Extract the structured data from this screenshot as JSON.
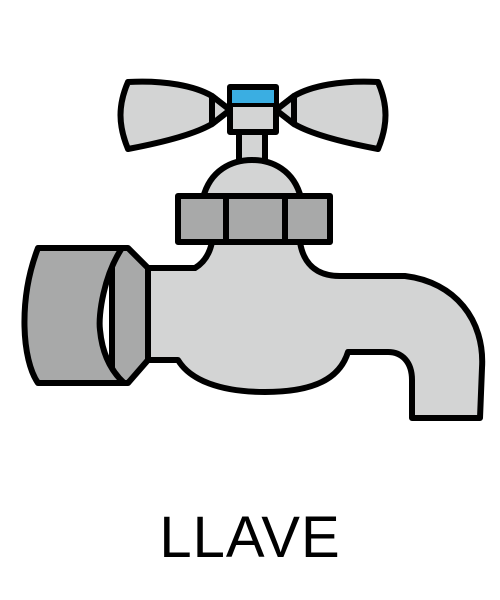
{
  "caption": {
    "text": "LLAVE"
  },
  "illustration": {
    "icon": "water-faucet-icon",
    "colors": {
      "outline": "#000000",
      "body": "#d3d4d4",
      "dark_part": "#a8a9a9",
      "indicator": "#3aaee2",
      "background": "#ffffff"
    }
  }
}
